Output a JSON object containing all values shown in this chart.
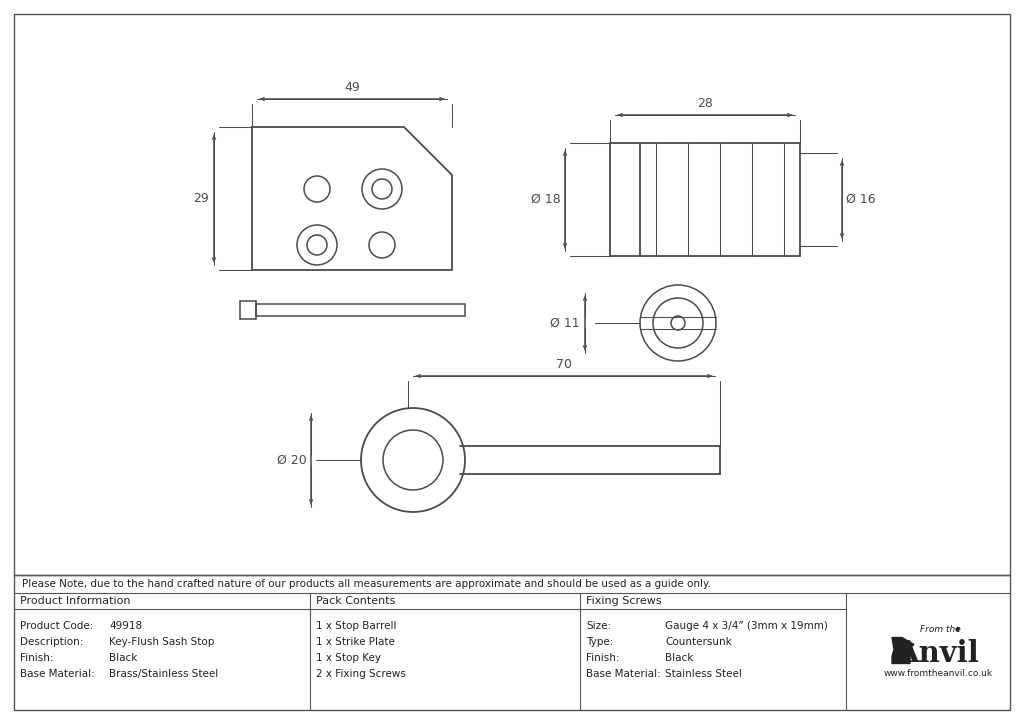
{
  "line_color": "#4a4a4a",
  "border_color": "#555555",
  "note_text": "Please Note, due to the hand crafted nature of our products all measurements are approximate and should be used as a guide only.",
  "product_info": {
    "label": "Product Information",
    "rows": [
      [
        "Product Code:",
        "49918"
      ],
      [
        "Description:",
        "Key-Flush Sash Stop"
      ],
      [
        "Finish:",
        "Black"
      ],
      [
        "Base Material:",
        "Brass/Stainless Steel"
      ]
    ]
  },
  "pack_contents": {
    "label": "Pack Contents",
    "rows": [
      "1 x Stop Barrell",
      "1 x Strike Plate",
      "1 x Stop Key",
      "2 x Fixing Screws"
    ]
  },
  "fixing_screws": {
    "label": "Fixing Screws",
    "rows": [
      [
        "Size:",
        "Gauge 4 x 3/4” (3mm x 19mm)"
      ],
      [
        "Type:",
        "Countersunk"
      ],
      [
        "Finish:",
        "Black"
      ],
      [
        "Base Material:",
        "Stainless Steel"
      ]
    ]
  }
}
